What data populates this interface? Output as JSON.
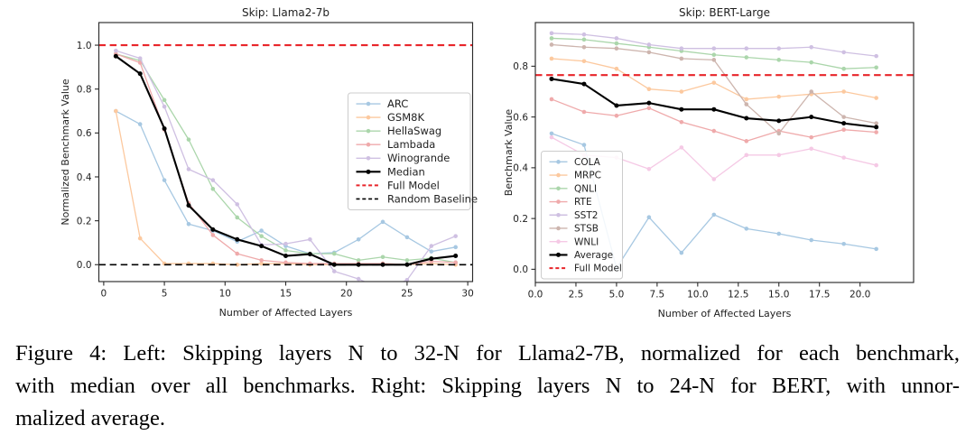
{
  "figure": {
    "caption_lines": [
      "Figure 4: Left: Skipping layers N to 32-N for Llama2-7B, normalized for each benchmark,",
      "with median over all benchmarks. Right: Skipping layers N to 24-N for BERT, with unnor-",
      "malized average."
    ]
  },
  "chart_data": [
    {
      "type": "line",
      "title": "Skip: Llama2-7b",
      "xlabel": "Number of Affected Layers",
      "ylabel": "Normalized Benchmark Value",
      "x": [
        1,
        3,
        5,
        7,
        9,
        11,
        13,
        15,
        17,
        19,
        21,
        23,
        25,
        27,
        29
      ],
      "xlim": [
        -0.4,
        30.4
      ],
      "ylim": [
        -0.077,
        1.103
      ],
      "xticks": [
        0,
        5,
        10,
        15,
        20,
        25,
        30
      ],
      "xtick_labels": [
        "0",
        "5",
        "10",
        "15",
        "20",
        "25",
        "30"
      ],
      "yticks": [
        0.0,
        0.2,
        0.4,
        0.6,
        0.8,
        1.0
      ],
      "ytick_labels": [
        "0.0",
        "0.2",
        "0.4",
        "0.6",
        "0.8",
        "1.0"
      ],
      "grid": false,
      "legend_position": "center right",
      "series": [
        {
          "name": "ARC",
          "color": "#a7c8e2",
          "values": [
            0.7,
            0.64,
            0.385,
            0.185,
            0.155,
            0.105,
            0.155,
            0.085,
            0.05,
            0.055,
            0.115,
            0.195,
            0.125,
            0.06,
            0.08
          ]
        },
        {
          "name": "GSM8K",
          "color": "#fcc99f",
          "values": [
            0.7,
            0.12,
            0.005,
            0.005,
            0.005,
            0.0,
            0.005,
            0.005,
            0.0,
            0.0,
            0.0,
            0.005,
            0.0,
            0.005,
            0.0
          ]
        },
        {
          "name": "HellaSwag",
          "color": "#abd6ab",
          "values": [
            0.96,
            0.93,
            0.75,
            0.57,
            0.345,
            0.215,
            0.13,
            0.065,
            0.05,
            0.05,
            0.02,
            0.035,
            0.02,
            0.03,
            0.01
          ]
        },
        {
          "name": "Lambada",
          "color": "#efaaab",
          "values": [
            0.96,
            0.92,
            0.615,
            0.28,
            0.135,
            0.05,
            0.02,
            0.01,
            0.005,
            0.005,
            0.005,
            0.005,
            0.0,
            0.015,
            0.01
          ]
        },
        {
          "name": "Winogrande",
          "color": "#cfc0e2",
          "values": [
            0.975,
            0.94,
            0.72,
            0.435,
            0.385,
            0.275,
            0.09,
            0.095,
            0.115,
            -0.03,
            -0.065,
            -0.115,
            -0.07,
            0.085,
            0.13
          ]
        },
        {
          "name": "Median",
          "color": "#000000",
          "emphasis": true,
          "values": [
            0.95,
            0.87,
            0.62,
            0.27,
            0.16,
            0.115,
            0.085,
            0.04,
            0.048,
            0.0,
            0.0,
            0.0,
            0.0,
            0.027,
            0.04
          ]
        }
      ],
      "reference_lines": [
        {
          "name": "Full Model",
          "value": 1.0,
          "color": "#e8252a",
          "style": "dashed"
        },
        {
          "name": "Random Baseline",
          "value": 0.0,
          "color": "#000000",
          "style": "dashed"
        }
      ]
    },
    {
      "type": "line",
      "title": "Skip: BERT-Large",
      "xlabel": "Number of Affected Layers",
      "ylabel": "Benchmark Value",
      "x": [
        1,
        3,
        5,
        7,
        9,
        11,
        13,
        15,
        17,
        19,
        21
      ],
      "xlim": [
        0,
        23.3
      ],
      "ylim": [
        -0.052,
        0.972
      ],
      "xticks": [
        0,
        2.5,
        5,
        7.5,
        10,
        12.5,
        15,
        17.5,
        20
      ],
      "xtick_labels": [
        "0.0",
        "2.5",
        "5.0",
        "7.5",
        "10.0",
        "12.5",
        "15.0",
        "17.5",
        "20.0"
      ],
      "yticks": [
        0.0,
        0.2,
        0.4,
        0.6,
        0.8
      ],
      "ytick_labels": [
        "0.0",
        "0.2",
        "0.4",
        "0.6",
        "0.8"
      ],
      "grid": false,
      "legend_position": "lower left",
      "series": [
        {
          "name": "COLA",
          "color": "#a7c8e2",
          "values": [
            0.535,
            0.49,
            0.005,
            0.205,
            0.065,
            0.215,
            0.16,
            0.14,
            0.115,
            0.1,
            0.08
          ]
        },
        {
          "name": "MRPC",
          "color": "#fcc99f",
          "values": [
            0.83,
            0.82,
            0.79,
            0.71,
            0.7,
            0.735,
            0.67,
            0.68,
            0.69,
            0.7,
            0.675
          ]
        },
        {
          "name": "QNLI",
          "color": "#abd6ab",
          "values": [
            0.91,
            0.905,
            0.89,
            0.875,
            0.86,
            0.845,
            0.835,
            0.825,
            0.815,
            0.79,
            0.795
          ]
        },
        {
          "name": "RTE",
          "color": "#efaaab",
          "values": [
            0.67,
            0.62,
            0.605,
            0.635,
            0.58,
            0.545,
            0.505,
            0.545,
            0.52,
            0.55,
            0.54
          ]
        },
        {
          "name": "SST2",
          "color": "#cfc0e2",
          "values": [
            0.93,
            0.925,
            0.91,
            0.885,
            0.87,
            0.87,
            0.87,
            0.87,
            0.875,
            0.855,
            0.84
          ]
        },
        {
          "name": "STSB",
          "color": "#cdb5ae",
          "values": [
            0.885,
            0.875,
            0.87,
            0.855,
            0.83,
            0.825,
            0.65,
            0.535,
            0.7,
            0.6,
            0.575
          ]
        },
        {
          "name": "WNLI",
          "color": "#f5c9e5",
          "values": [
            0.52,
            0.45,
            0.44,
            0.395,
            0.48,
            0.355,
            0.45,
            0.45,
            0.475,
            0.44,
            0.41
          ]
        },
        {
          "name": "Average",
          "color": "#000000",
          "emphasis": true,
          "values": [
            0.75,
            0.73,
            0.645,
            0.655,
            0.63,
            0.63,
            0.595,
            0.585,
            0.6,
            0.575,
            0.56
          ]
        }
      ],
      "reference_lines": [
        {
          "name": "Full Model",
          "value": 0.765,
          "color": "#e8252a",
          "style": "dashed"
        }
      ]
    }
  ]
}
